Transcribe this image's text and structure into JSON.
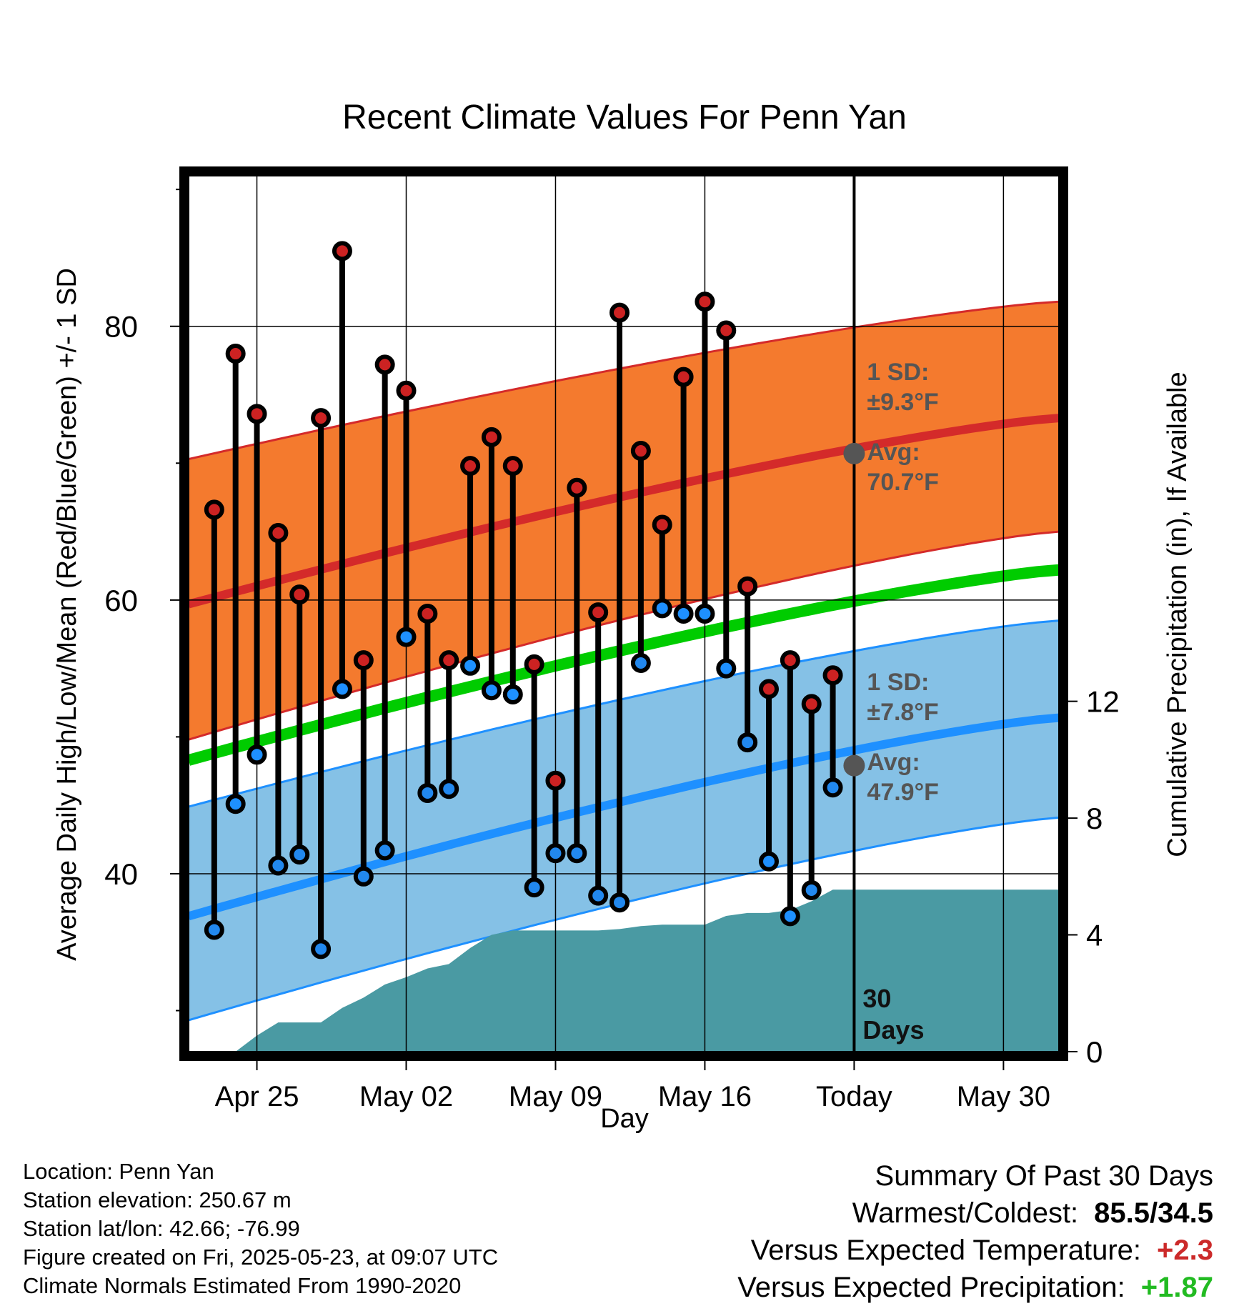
{
  "chart_data": {
    "type": "line",
    "title": "Recent Climate Values For Penn Yan",
    "xlabel": "Day",
    "ylabel": "Average Daily High/Low/Mean (Red/Blue/Green) +/- 1 SD",
    "y2label": "Cumulative Precipitation (in), If Available",
    "ylim": [
      27,
      91
    ],
    "y2lim": [
      0,
      30
    ],
    "yticks": [
      40,
      60,
      80
    ],
    "y2ticks": [
      0,
      4,
      8,
      12
    ],
    "xlim": [
      -3.2,
      37.6
    ],
    "xticks": [
      {
        "x": 0,
        "label": "Apr 25"
      },
      {
        "x": 7,
        "label": "May 02"
      },
      {
        "x": 14,
        "label": "May 09"
      },
      {
        "x": 21,
        "label": "May 16"
      },
      {
        "x": 28,
        "label": "Today"
      },
      {
        "x": 35,
        "label": "May 30"
      }
    ],
    "today_x": 28,
    "today_label": [
      "30",
      "Days"
    ],
    "normals": {
      "high_avg": [
        59.7,
        73.3
      ],
      "high_upper": [
        70.3,
        81.8
      ],
      "high_lower": [
        49.8,
        65.0
      ],
      "mean_avg": [
        48.3,
        62.2
      ],
      "low_avg": [
        36.9,
        51.4
      ],
      "low_upper": [
        44.9,
        58.5
      ],
      "low_lower": [
        29.3,
        44.1
      ]
    },
    "observed": {
      "x": [
        -2,
        -1,
        0,
        1,
        2,
        3,
        4,
        5,
        6,
        7,
        8,
        9,
        10,
        11,
        12,
        13,
        14,
        15,
        16,
        17,
        18,
        19,
        20,
        21,
        22,
        23,
        24,
        25,
        26,
        27
      ],
      "high": [
        66.6,
        78.0,
        73.6,
        64.9,
        60.4,
        73.3,
        85.5,
        55.6,
        77.2,
        75.3,
        59.0,
        55.6,
        69.8,
        71.9,
        69.8,
        55.3,
        46.8,
        68.2,
        59.1,
        81.0,
        70.9,
        65.5,
        76.3,
        81.8,
        79.7,
        61.0,
        53.5,
        55.6,
        52.4,
        54.5
      ],
      "low": [
        35.9,
        45.1,
        48.7,
        40.6,
        41.4,
        34.5,
        53.5,
        39.8,
        41.7,
        57.3,
        45.9,
        46.2,
        55.2,
        53.4,
        53.1,
        39.0,
        41.5,
        41.5,
        38.4,
        37.9,
        55.4,
        59.4,
        59.0,
        59.0,
        55.0,
        49.6,
        40.9,
        36.9,
        38.8,
        46.3
      ],
      "low_in_band": [
        false,
        true,
        true,
        false,
        false,
        false,
        true,
        false,
        false,
        true,
        false,
        false,
        true,
        true,
        true,
        false,
        false,
        false,
        false,
        false,
        false,
        true,
        true,
        true,
        true,
        false,
        true,
        true,
        false,
        false
      ]
    },
    "precip": {
      "x": [
        -1,
        0,
        1,
        2,
        3,
        4,
        5,
        6,
        7,
        8,
        9,
        10,
        11,
        12,
        13,
        14,
        15,
        16,
        17,
        18,
        19,
        20,
        21,
        22,
        23,
        24,
        25,
        26,
        27,
        28,
        37.6
      ],
      "values": [
        0,
        0.55,
        1.0,
        1.0,
        1.0,
        1.5,
        1.85,
        2.3,
        2.55,
        2.85,
        3.0,
        3.55,
        4.0,
        4.15,
        4.15,
        4.15,
        4.15,
        4.15,
        4.2,
        4.3,
        4.35,
        4.35,
        4.35,
        4.65,
        4.75,
        4.75,
        4.85,
        5.15,
        5.55,
        5.55,
        5.55
      ]
    },
    "annotations": [
      {
        "series": "high",
        "lines": [
          "1 SD:",
          "±9.3°F",
          "Avg:",
          "70.7°F"
        ],
        "avg_value": 70.7
      },
      {
        "series": "low",
        "lines": [
          "1 SD:",
          "±7.8°F",
          "Avg:",
          "47.9°F"
        ],
        "avg_value": 47.9
      }
    ],
    "colors": {
      "high_band": "#f47a2e",
      "high_line": "#d42a2a",
      "low_band": "#85c1e6",
      "low_line": "#1e90ff",
      "mean_line": "#00cc00",
      "precip": "#4a9aa3",
      "high_marker": "#cc2222",
      "low_marker_out": "#2288ee",
      "low_marker_in": "#1e90ff",
      "annotation": "#555555"
    }
  },
  "info": {
    "location": "Location: Penn Yan",
    "elevation": "Station elevation: 250.67 m",
    "latlon": "Station lat/lon: 42.66; -76.99",
    "created": "Figure created on Fri, 2025-05-23, at 09:07 UTC",
    "normals": "Climate Normals Estimated From 1990-2020"
  },
  "summary": {
    "heading": "Summary Of Past 30 Days",
    "warmest_label": "Warmest/Coldest:",
    "warmest_value": "85.5/34.5",
    "temp_label": "Versus Expected Temperature:",
    "temp_value": "+2.3",
    "precip_label": "Versus Expected Precipitation:",
    "precip_value": "+1.87"
  }
}
